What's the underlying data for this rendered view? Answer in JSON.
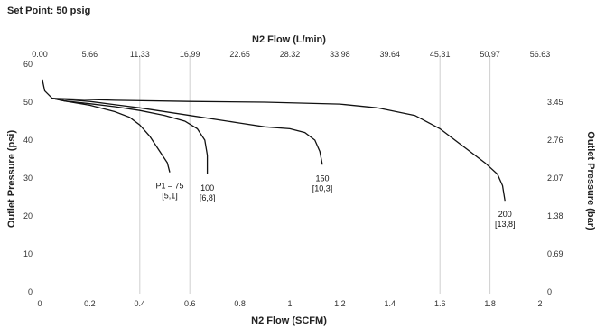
{
  "header": {
    "set_point": "Set Point: 50 psig"
  },
  "chart_data": {
    "type": "line",
    "title": "",
    "xlabel": "N2 Flow (SCFM)",
    "ylabel": "Outlet Pressure (psi)",
    "top_xlabel": "N2 Flow (L/min)",
    "right_ylabel": "Outlet Pressure (bar)",
    "xlim": [
      0,
      2
    ],
    "ylim": [
      0,
      60
    ],
    "x_ticks": [
      0,
      0.2,
      0.4,
      0.6,
      0.8,
      1,
      1.2,
      1.4,
      1.6,
      1.8,
      2
    ],
    "x_tick_labels": [
      "0",
      "0.2",
      "0.4",
      "0.6",
      "0.8",
      "1",
      "1.2",
      "1.4",
      "1.6",
      "1.8",
      "2"
    ],
    "y_ticks": [
      0,
      10,
      20,
      30,
      40,
      50,
      60
    ],
    "y_tick_labels": [
      "0",
      "10",
      "20",
      "30",
      "40",
      "50",
      "60"
    ],
    "top_x_tick_labels": [
      "0.00",
      "5.66",
      "11.33",
      "16.99",
      "22.65",
      "28.32",
      "33.98",
      "39.64",
      "45.31",
      "50.97",
      "56.63"
    ],
    "right_y_ticks": [
      0,
      10,
      20,
      30,
      40,
      50
    ],
    "right_y_tick_labels": [
      "0",
      "0.69",
      "1.38",
      "2.07",
      "2.76",
      "3.45"
    ],
    "grid_x": [
      0.4,
      0.6,
      1.6,
      1.8
    ],
    "grid": true,
    "series": [
      {
        "label_line1": "P1 – 75",
        "label_line2": "[5,1]",
        "points": [
          [
            0.01,
            56
          ],
          [
            0.02,
            53
          ],
          [
            0.05,
            51
          ],
          [
            0.1,
            50.3
          ],
          [
            0.2,
            49.2
          ],
          [
            0.3,
            47.5
          ],
          [
            0.36,
            46
          ],
          [
            0.4,
            44
          ],
          [
            0.44,
            41
          ],
          [
            0.48,
            37
          ],
          [
            0.51,
            34
          ],
          [
            0.52,
            31.5
          ]
        ]
      },
      {
        "label_line1": "100",
        "label_line2": "[6,8]",
        "points": [
          [
            0.05,
            51
          ],
          [
            0.1,
            50.3
          ],
          [
            0.2,
            49.6
          ],
          [
            0.3,
            48.8
          ],
          [
            0.4,
            47.8
          ],
          [
            0.5,
            46.5
          ],
          [
            0.58,
            45
          ],
          [
            0.63,
            43
          ],
          [
            0.66,
            40
          ],
          [
            0.67,
            36
          ],
          [
            0.67,
            31
          ]
        ]
      },
      {
        "label_line1": "150",
        "label_line2": "[10,3]",
        "points": [
          [
            0.05,
            51
          ],
          [
            0.2,
            50.2
          ],
          [
            0.4,
            48.5
          ],
          [
            0.6,
            46.5
          ],
          [
            0.8,
            44.5
          ],
          [
            0.9,
            43.5
          ],
          [
            1.0,
            43
          ],
          [
            1.06,
            42
          ],
          [
            1.1,
            40
          ],
          [
            1.12,
            37
          ],
          [
            1.13,
            33.5
          ]
        ]
      },
      {
        "label_line1": "200",
        "label_line2": "[13,8]",
        "points": [
          [
            0.05,
            51
          ],
          [
            0.3,
            50.5
          ],
          [
            0.6,
            50.2
          ],
          [
            0.9,
            50
          ],
          [
            1.2,
            49.5
          ],
          [
            1.35,
            48.5
          ],
          [
            1.5,
            46.5
          ],
          [
            1.6,
            43
          ],
          [
            1.7,
            38
          ],
          [
            1.78,
            34
          ],
          [
            1.83,
            31
          ],
          [
            1.85,
            28
          ],
          [
            1.86,
            24
          ]
        ]
      }
    ]
  }
}
